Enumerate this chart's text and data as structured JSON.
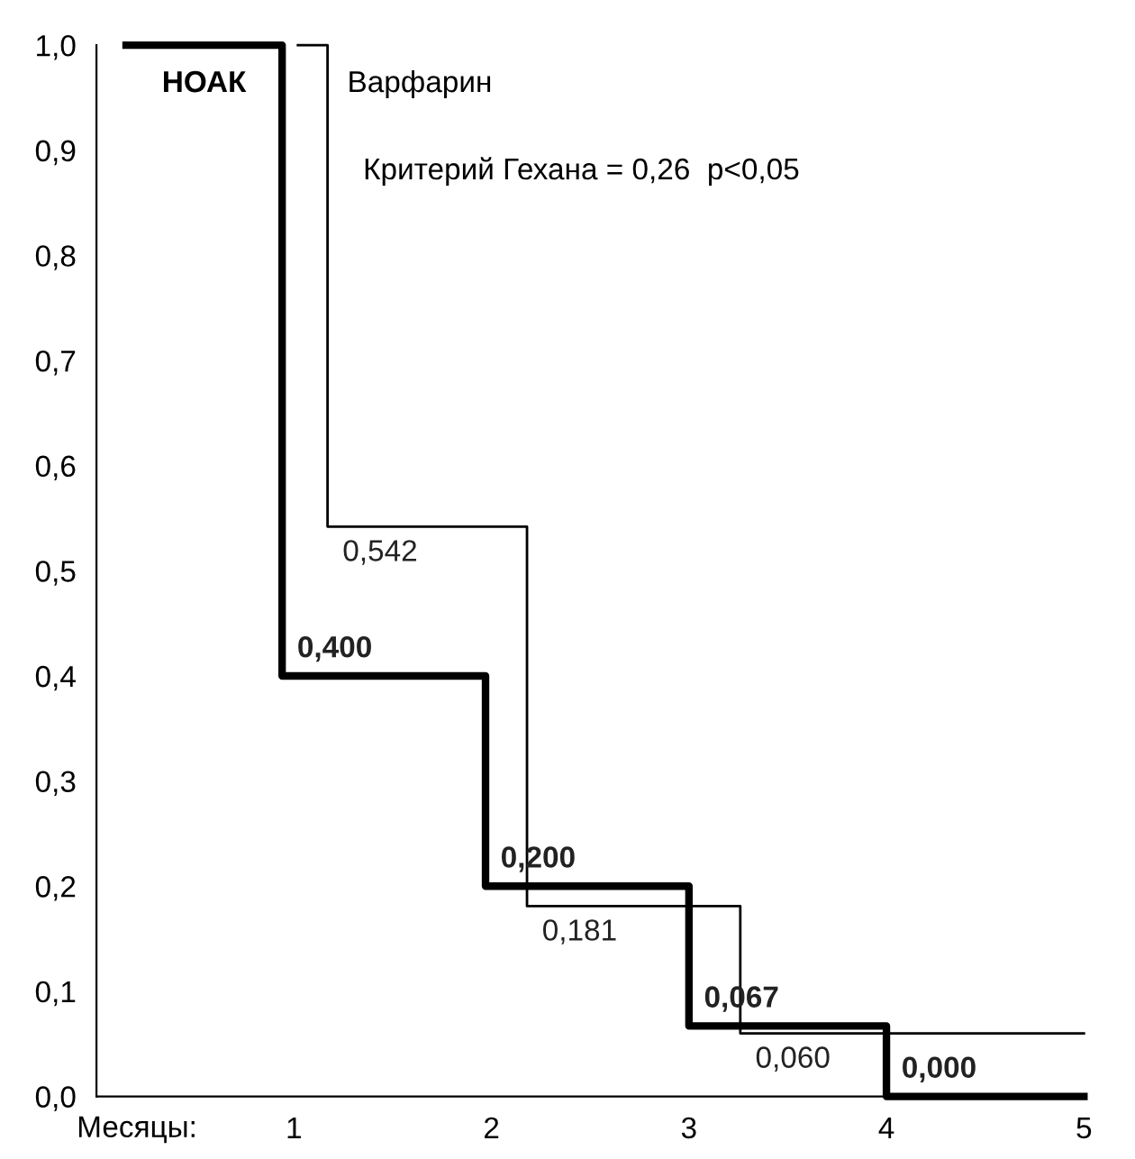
{
  "chart_data": {
    "type": "step",
    "xlabel": "Месяцы:",
    "annotations": [
      "Критерий Гехана = 0,26  p<0,05"
    ],
    "xlim": [
      0,
      5
    ],
    "xticks": [
      1,
      2,
      3,
      4,
      5
    ],
    "ylim": [
      0,
      1
    ],
    "yticks": [
      {
        "value": 0,
        "label": "0,0"
      },
      {
        "value": 0.1,
        "label": "0,1"
      },
      {
        "value": 0.2,
        "label": "0,2"
      },
      {
        "value": 0.3,
        "label": "0,3"
      },
      {
        "value": 0.4,
        "label": "0,4"
      },
      {
        "value": 0.5,
        "label": "0,5"
      },
      {
        "value": 0.6,
        "label": "0,6"
      },
      {
        "value": 0.7,
        "label": "0,7"
      },
      {
        "value": 0.8,
        "label": "0,8"
      },
      {
        "value": 0.9,
        "label": "0,9"
      },
      {
        "value": 1,
        "label": "1,0"
      }
    ],
    "grid": false,
    "legend": false,
    "marker": "none",
    "line_style": "solid",
    "series": [
      {
        "name": "НОАК",
        "color": "#000000",
        "x": [
          0.15,
          0.94,
          1.97,
          3.0,
          4.0,
          5.0
        ],
        "values": [
          1.0,
          0.4,
          0.2,
          0.067,
          0.0,
          0.0
        ],
        "value_labels": [
          null,
          "0,400",
          "0,200",
          "0,067",
          "0,000",
          null
        ]
      },
      {
        "name": "Варфарин",
        "color": "#000000",
        "x": [
          1.02,
          1.17,
          2.18,
          3.26,
          5.0
        ],
        "values": [
          1.0,
          0.542,
          0.181,
          0.06,
          0.06
        ],
        "value_labels": [
          null,
          "0,542",
          "0,181",
          "0,060",
          null
        ]
      }
    ]
  }
}
